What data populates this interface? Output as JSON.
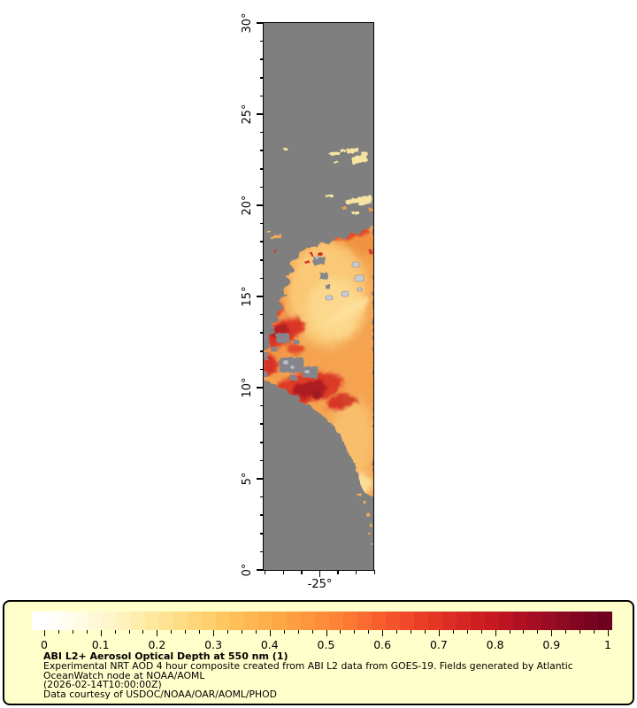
{
  "figure": {
    "background": "#ffffff",
    "no_data_color": "#7f7f7f"
  },
  "legend": {
    "panel_background": "#ffffcc",
    "title": "ABI L2+ Aerosol Optical Depth at 550 nm (1)",
    "line2": "Experimental NRT AOD 4 hour composite created from ABI L2 data from GOES-19. Fields generated by Atlantic",
    "line3": "OceanWatch node at NOAA/AOML",
    "line4": "(2026-02-14T10:00:00Z)",
    "line5": "Data courtesy of USDOC/NOAA/OAR/AOML/PHOD"
  },
  "chart_data": {
    "type": "heatmap",
    "title": "ABI L2+ Aerosol Optical Depth at 550 nm (1)",
    "subtitle": "Experimental NRT AOD 4 hour composite created from ABI L2 data from GOES-19. Fields generated by Atlantic OceanWatch node at NOAA/AOML",
    "timestamp": "(2026-02-14T10:00:00Z)",
    "credit": "Data courtesy of USDOC/NOAA/OAR/AOML/PHOD",
    "grid": false,
    "y_axis": {
      "kind": "latitude",
      "min": 0,
      "max": 30,
      "major_step": 5,
      "minor_step": 1,
      "major_labels": [
        "0°",
        "5°",
        "10°",
        "15°",
        "20°",
        "25°",
        "30°"
      ]
    },
    "x_axis": {
      "kind": "longitude",
      "min": -28.06,
      "max": -22.04,
      "minor_step": 1,
      "major_ticks": [
        -25
      ],
      "major_labels": [
        "-25°"
      ]
    },
    "colorbar": {
      "range": [
        0,
        1
      ],
      "major_tick_labels": [
        "0",
        "0.1",
        "0.2",
        "0.3",
        "0.4",
        "0.5",
        "0.6",
        "0.7",
        "0.8",
        "0.9",
        "1"
      ],
      "minor_tick_step": 0.025,
      "n_blocks": 41,
      "stops": [
        [
          0.0,
          "#ffffff"
        ],
        [
          0.05,
          "#fffcea"
        ],
        [
          0.1,
          "#fff7d1"
        ],
        [
          0.15,
          "#feefb3"
        ],
        [
          0.2,
          "#fee597"
        ],
        [
          0.25,
          "#fed97e"
        ],
        [
          0.3,
          "#fecb66"
        ],
        [
          0.35,
          "#febb55"
        ],
        [
          0.4,
          "#fdab49"
        ],
        [
          0.45,
          "#fd9a3f"
        ],
        [
          0.5,
          "#fd8938"
        ],
        [
          0.55,
          "#fc7231"
        ],
        [
          0.6,
          "#f6592c"
        ],
        [
          0.65,
          "#ee4227"
        ],
        [
          0.7,
          "#e23124"
        ],
        [
          0.75,
          "#d32122"
        ],
        [
          0.8,
          "#c11622"
        ],
        [
          0.85,
          "#ab0e23"
        ],
        [
          0.9,
          "#930b23"
        ],
        [
          0.95,
          "#7c0522"
        ],
        [
          1.0,
          "#69001f"
        ]
      ]
    },
    "field_description": [
      {
        "feature": "no-retrieval background",
        "color": "#7f7f7f",
        "extent": "most of map above 19N and lower-left wedge below dust plume"
      },
      {
        "feature": "scattered thin AOD patches",
        "aod_approx": 0.12,
        "location": "21.5N-23.5N, -26.5W to -22.2W"
      },
      {
        "feature": "small AOD specks",
        "aod_approx": 0.2,
        "location": "19.5N-20.6N near -24W to -22W"
      },
      {
        "feature": "main Saharan dust plume body",
        "aod_approx": 0.45,
        "location": "from ~18.8N at right edge sloping down to ~4.3N, lons -28W to -22W"
      },
      {
        "feature": "lighter plume interior",
        "aod_approx": 0.3,
        "location": "13N-16N centre and 4.5N-8N south lobe"
      },
      {
        "feature": "red high-AOD band",
        "aod_approx": 0.75,
        "location": "12N-13.5N along -28W to -25.5W"
      },
      {
        "feature": "strongest dust core",
        "aod_approx": 0.9,
        "location": "9.7N-11.5N, -27.5W to -24.5W"
      },
      {
        "feature": "red streak on plume top edge",
        "aod_approx": 0.7,
        "location": "17.5N-18.7N near -23.5W to -22W"
      },
      {
        "feature": "Cape Verde islands (light grey)",
        "location": "14N-17N, -25.5W to -22.8W"
      }
    ]
  }
}
